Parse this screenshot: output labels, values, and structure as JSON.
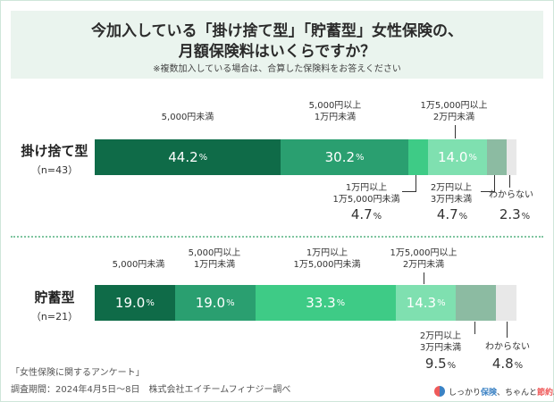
{
  "title": {
    "line1": "今加入している「掛け捨て型」「貯蓄型」女性保険の、",
    "line2": "月額保険料はいくらですか？",
    "note": "※複数加入している場合は、合算した保険料をお答えください"
  },
  "pct_unit": "%",
  "colors": {
    "seg1": "#0f6b48",
    "seg2": "#2a9f70",
    "seg3": "#3ecb86",
    "seg4": "#7fe0b0",
    "seg5": "#8cbba2",
    "seg6": "#e8e8e8"
  },
  "chart_data": {
    "type": "bar",
    "orientation": "horizontal",
    "stacked": true,
    "categories": [
      "5,000円未満",
      "5,000円以上1万円未満",
      "1万円以上1万5,000円未満",
      "1万5,000円以上2万円未満",
      "2万円以上3万円未満",
      "わからない"
    ],
    "xlim": [
      0,
      100
    ],
    "series": [
      {
        "name": "掛け捨て型",
        "n_label": "（n=43）",
        "values": [
          44.2,
          30.2,
          4.7,
          14.0,
          4.7,
          2.3
        ]
      },
      {
        "name": "貯蓄型",
        "n_label": "（n=21）",
        "values": [
          19.0,
          19.0,
          33.3,
          14.3,
          9.5,
          4.8
        ]
      }
    ],
    "category_labels": {
      "c0": "5,000円未満",
      "c1a": "5,000円以上",
      "c1b": "1万円未満",
      "c2a": "1万円以上",
      "c2b": "1万5,000円未満",
      "c3a": "1万5,000円以上",
      "c3b": "2万円未満",
      "c4a": "2万円以上",
      "c4b": "3万円未満",
      "c5": "わからない"
    },
    "value_labels": {
      "g1": [
        "44.2",
        "30.2",
        "4.7",
        "14.0",
        "4.7",
        "2.3"
      ],
      "g2": [
        "19.0",
        "19.0",
        "33.3",
        "14.3",
        "9.5",
        "4.8"
      ]
    }
  },
  "footer": {
    "survey": "「女性保険に関するアンケート」",
    "period": "調査期間：2024年4月5日～8日　株式会社エイチームフィナジー調べ"
  },
  "brand": {
    "prefix": "しっかり",
    "accent1": "保険",
    "middle": "、ちゃんと",
    "accent2": "節約",
    "suffix": "。"
  }
}
